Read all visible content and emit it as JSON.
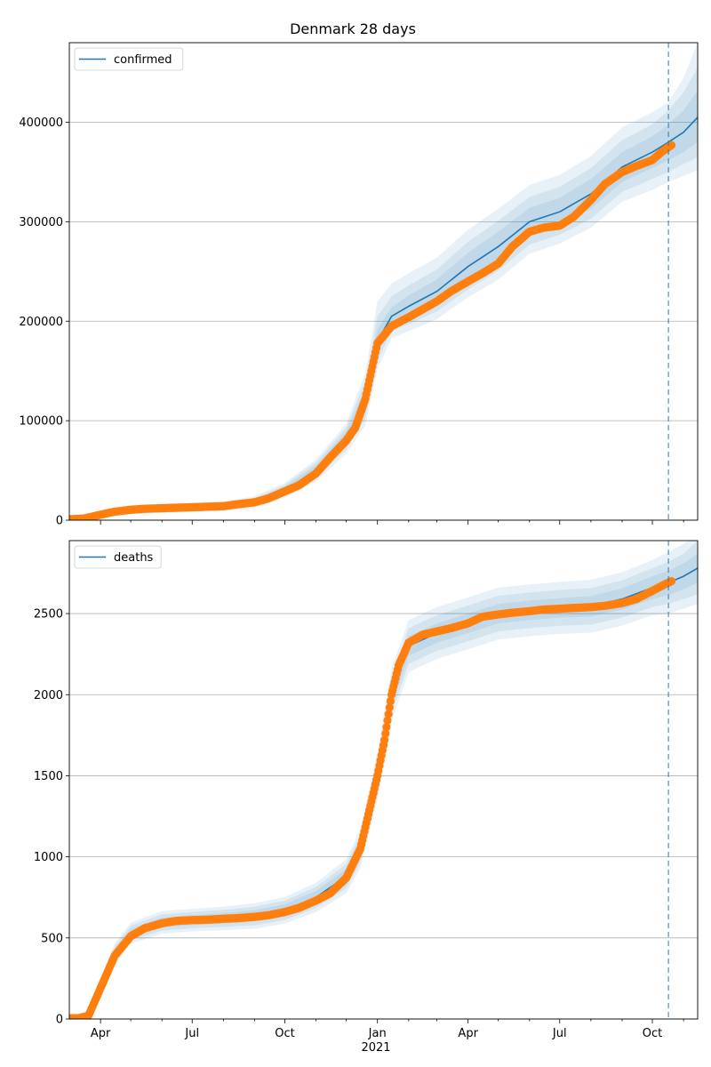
{
  "title": "Denmark 28 days",
  "colors": {
    "fit": "#1f77b4",
    "observed": "#ff7f0e",
    "band": "#1f77b4",
    "grid": "#b0b0b0",
    "vline": "#1f77b4"
  },
  "chart_data": [
    {
      "type": "line",
      "legend": "confirmed",
      "legend_position": "top-left",
      "grid": "y",
      "x_range": [
        "2020-03-01",
        "2021-11-15"
      ],
      "ylim": [
        0,
        480000
      ],
      "yticks": [
        0,
        100000,
        200000,
        300000,
        400000
      ],
      "ytick_labels": [
        "0",
        "100000",
        "200000",
        "300000",
        "400000"
      ],
      "forecast_start": "2021-10-17",
      "series": [
        {
          "name": "confirmed",
          "kind": "fit",
          "x": [
            "2020-03-01",
            "2020-04-01",
            "2020-05-01",
            "2020-06-01",
            "2020-07-01",
            "2020-08-01",
            "2020-09-01",
            "2020-10-01",
            "2020-11-01",
            "2020-12-01",
            "2020-12-20",
            "2021-01-01",
            "2021-01-15",
            "2021-02-01",
            "2021-03-01",
            "2021-04-01",
            "2021-05-01",
            "2021-06-01",
            "2021-07-01",
            "2021-08-01",
            "2021-09-01",
            "2021-10-01",
            "2021-10-17",
            "2021-11-01",
            "2021-11-15"
          ],
          "y": [
            1000,
            6000,
            10000,
            12000,
            13000,
            14000,
            18000,
            30000,
            50000,
            82000,
            120000,
            180000,
            205000,
            215000,
            230000,
            255000,
            275000,
            300000,
            310000,
            328000,
            355000,
            370000,
            380000,
            390000,
            405000
          ],
          "bands": [
            {
              "lower": [
                0,
                4500,
                8200,
                10000,
                11000,
                12000,
                15500,
                26500,
                45000,
                75000,
                108000,
                168000,
                196000,
                204000,
                218000,
                241000,
                260000,
                286000,
                296000,
                313000,
                340000,
                354000,
                362000,
                370000,
                380000
              ],
              "upper": [
                2000,
                7500,
                11800,
                14000,
                15000,
                16000,
                20500,
                33500,
                55000,
                89000,
                132000,
                192000,
                214000,
                226000,
                242000,
                269000,
                290000,
                314000,
                324000,
                343000,
                370000,
                386000,
                398000,
                412000,
                432000
              ]
            },
            {
              "lower": [
                0,
                3500,
                7000,
                8700,
                9600,
                10500,
                13800,
                24500,
                42000,
                71000,
                102000,
                160000,
                190000,
                197000,
                210000,
                232000,
                251000,
                277000,
                287000,
                303000,
                330000,
                343000,
                350000,
                358000,
                365000
              ],
              "upper": [
                3000,
                8500,
                13000,
                15300,
                16400,
                17500,
                22200,
                35500,
                58000,
                93000,
                140000,
                205000,
                225000,
                236000,
                252000,
                280000,
                301000,
                325000,
                335000,
                354000,
                382000,
                398000,
                412000,
                430000,
                455000
              ]
            },
            {
              "lower": [
                0,
                2500,
                5800,
                7400,
                8200,
                9000,
                12000,
                22500,
                39000,
                67000,
                95000,
                152000,
                183000,
                190000,
                202000,
                224000,
                242000,
                268000,
                278000,
                294000,
                320000,
                332000,
                340000,
                346000,
                352000
              ],
              "upper": [
                4000,
                9500,
                14200,
                16600,
                17800,
                19000,
                24000,
                37500,
                61000,
                97000,
                148000,
                220000,
                238000,
                248000,
                264000,
                292000,
                313000,
                337000,
                347000,
                366000,
                395000,
                410000,
                420000,
                445000,
                480000
              ]
            }
          ]
        },
        {
          "name": "observed",
          "kind": "markers",
          "x": [
            "2020-03-01",
            "2020-03-15",
            "2020-04-01",
            "2020-04-15",
            "2020-05-01",
            "2020-05-15",
            "2020-06-01",
            "2020-06-15",
            "2020-07-01",
            "2020-07-15",
            "2020-08-01",
            "2020-08-15",
            "2020-09-01",
            "2020-09-15",
            "2020-10-01",
            "2020-10-15",
            "2020-11-01",
            "2020-11-15",
            "2020-12-01",
            "2020-12-10",
            "2020-12-20",
            "2021-01-01",
            "2021-01-15",
            "2021-02-01",
            "2021-02-15",
            "2021-03-01",
            "2021-03-15",
            "2021-04-01",
            "2021-04-15",
            "2021-05-01",
            "2021-05-15",
            "2021-06-01",
            "2021-06-15",
            "2021-07-01",
            "2021-07-15",
            "2021-08-01",
            "2021-08-15",
            "2021-09-01",
            "2021-09-15",
            "2021-10-01",
            "2021-10-10",
            "2021-10-20"
          ],
          "y": [
            1000,
            1500,
            5500,
            8500,
            10500,
            11500,
            12000,
            12500,
            13000,
            13500,
            14000,
            16000,
            18000,
            22000,
            29000,
            35000,
            47000,
            63000,
            80000,
            93000,
            122000,
            178000,
            195000,
            204000,
            212000,
            220000,
            230000,
            240000,
            248000,
            258000,
            275000,
            290000,
            294000,
            296000,
            305000,
            322000,
            338000,
            350000,
            356000,
            362000,
            370000,
            377000
          ]
        }
      ]
    },
    {
      "type": "line",
      "legend": "deaths",
      "legend_position": "top-left",
      "grid": "y",
      "x_range": [
        "2020-03-01",
        "2021-11-15"
      ],
      "ylim": [
        0,
        2950
      ],
      "yticks": [
        0,
        500,
        1000,
        1500,
        2000,
        2500
      ],
      "ytick_labels": [
        "0",
        "500",
        "1000",
        "1500",
        "2000",
        "2500"
      ],
      "xtick_labels": [
        "Apr",
        "Jul",
        "Oct",
        "Jan",
        "Apr",
        "Jul",
        "Oct"
      ],
      "xtick_dates": [
        "2020-04-01",
        "2020-07-01",
        "2020-10-01",
        "2021-01-01",
        "2021-04-01",
        "2021-07-01",
        "2021-10-01"
      ],
      "year_label": "2021",
      "forecast_start": "2021-10-17",
      "series": [
        {
          "name": "deaths",
          "kind": "fit",
          "x": [
            "2020-03-01",
            "2020-03-15",
            "2020-04-01",
            "2020-04-15",
            "2020-05-01",
            "2020-06-01",
            "2020-07-01",
            "2020-08-01",
            "2020-09-01",
            "2020-10-01",
            "2020-11-01",
            "2020-12-01",
            "2020-12-15",
            "2021-01-01",
            "2021-01-15",
            "2021-02-01",
            "2021-03-01",
            "2021-04-01",
            "2021-05-01",
            "2021-06-01",
            "2021-07-01",
            "2021-08-01",
            "2021-09-01",
            "2021-10-01",
            "2021-10-17",
            "2021-11-01",
            "2021-11-15"
          ],
          "y": [
            0,
            10,
            180,
            400,
            530,
            595,
            610,
            620,
            635,
            670,
            750,
            880,
            1050,
            1500,
            2000,
            2300,
            2380,
            2440,
            2500,
            2520,
            2535,
            2545,
            2590,
            2660,
            2690,
            2730,
            2780
          ],
          "bands": [
            {
              "lower": [
                0,
                5,
                160,
                375,
                505,
                565,
                580,
                588,
                600,
                632,
                710,
                835,
                1000,
                1440,
                1940,
                2240,
                2320,
                2380,
                2440,
                2460,
                2475,
                2482,
                2525,
                2590,
                2615,
                2650,
                2690
              ],
              "upper": [
                0,
                15,
                200,
                425,
                555,
                625,
                640,
                652,
                670,
                708,
                790,
                925,
                1100,
                1560,
                2060,
                2360,
                2440,
                2500,
                2560,
                2580,
                2595,
                2608,
                2655,
                2730,
                2765,
                2810,
                2870
              ]
            },
            {
              "lower": [
                0,
                2,
                145,
                355,
                485,
                545,
                560,
                568,
                578,
                610,
                685,
                805,
                965,
                1395,
                1890,
                2190,
                2270,
                2330,
                2390,
                2410,
                2425,
                2432,
                2475,
                2540,
                2560,
                2590,
                2620
              ],
              "upper": [
                0,
                18,
                215,
                445,
                575,
                645,
                660,
                672,
                692,
                730,
                815,
                955,
                1135,
                1605,
                2110,
                2410,
                2490,
                2550,
                2610,
                2630,
                2645,
                2658,
                2705,
                2780,
                2820,
                2870,
                2950
              ]
            },
            {
              "lower": [
                0,
                0,
                130,
                335,
                465,
                525,
                540,
                548,
                556,
                588,
                660,
                775,
                930,
                1350,
                1840,
                2140,
                2220,
                2280,
                2340,
                2360,
                2375,
                2382,
                2425,
                2490,
                2500,
                2530,
                2560
              ],
              "upper": [
                0,
                20,
                230,
                465,
                595,
                665,
                680,
                692,
                714,
                752,
                840,
                985,
                1170,
                1650,
                2160,
                2460,
                2540,
                2600,
                2660,
                2680,
                2695,
                2708,
                2755,
                2830,
                2880,
                2930,
                3000
              ]
            }
          ]
        },
        {
          "name": "observed",
          "kind": "markers",
          "x": [
            "2020-03-01",
            "2020-03-10",
            "2020-03-20",
            "2020-04-01",
            "2020-04-15",
            "2020-05-01",
            "2020-05-15",
            "2020-06-01",
            "2020-06-15",
            "2020-07-01",
            "2020-07-15",
            "2020-08-01",
            "2020-08-15",
            "2020-09-01",
            "2020-09-15",
            "2020-10-01",
            "2020-10-15",
            "2020-11-01",
            "2020-11-15",
            "2020-12-01",
            "2020-12-15",
            "2021-01-01",
            "2021-01-08",
            "2021-01-15",
            "2021-01-22",
            "2021-02-01",
            "2021-02-15",
            "2021-03-01",
            "2021-03-15",
            "2021-04-01",
            "2021-04-15",
            "2021-05-01",
            "2021-05-15",
            "2021-06-01",
            "2021-06-15",
            "2021-07-01",
            "2021-07-15",
            "2021-08-01",
            "2021-08-15",
            "2021-09-01",
            "2021-09-15",
            "2021-10-01",
            "2021-10-10",
            "2021-10-20"
          ],
          "y": [
            5,
            5,
            20,
            190,
            390,
            510,
            560,
            590,
            605,
            610,
            612,
            618,
            622,
            630,
            640,
            660,
            685,
            730,
            775,
            870,
            1050,
            1500,
            1720,
            2000,
            2180,
            2320,
            2370,
            2390,
            2410,
            2440,
            2480,
            2495,
            2505,
            2515,
            2525,
            2530,
            2535,
            2540,
            2548,
            2565,
            2590,
            2640,
            2670,
            2700
          ]
        }
      ]
    }
  ]
}
